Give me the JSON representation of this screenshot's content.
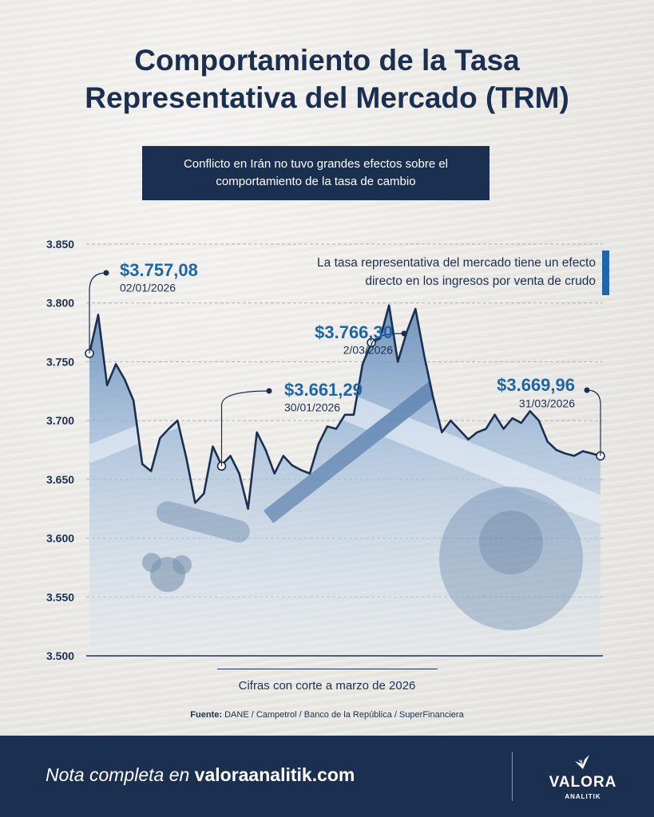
{
  "header": {
    "title_line1": "Comportamiento de la Tasa",
    "title_line2": "Representativa del Mercado (TRM)",
    "subtitle": "Conflicto en Irán no tuvo grandes efectos sobre el comportamiento de la tasa de cambio"
  },
  "note": "La tasa representativa del mercado tiene un efecto directo en los ingresos por venta de crudo",
  "caption": "Cifras con corte a marzo de 2026",
  "source": {
    "label": "Fuente:",
    "text": "DANE / Campetrol / Banco de la República / SuperFinanciera"
  },
  "footer": {
    "lead": "Nota completa en",
    "url": "valoraanalitik.com",
    "logo_name": "VALORA",
    "logo_sub": "ANALITIK"
  },
  "colors": {
    "navy": "#1b3050",
    "accent_blue": "#1e66a8",
    "fill_light": "#c6d7ea",
    "fill_mid": "#6f95c0"
  },
  "chart_data": {
    "type": "area",
    "ylim": [
      3500,
      3850
    ],
    "yticks": [
      "3.850",
      "3.800",
      "3.750",
      "3.700",
      "3.650",
      "3.600",
      "3.550",
      "3.500"
    ],
    "ytick_values": [
      3850,
      3800,
      3750,
      3700,
      3650,
      3600,
      3550,
      3500
    ],
    "x_index_range": [
      0,
      58
    ],
    "values": [
      3757,
      3790,
      3730,
      3748,
      3735,
      3717,
      3663,
      3657,
      3685,
      3693,
      3700,
      3668,
      3630,
      3638,
      3678,
      3662,
      3670,
      3655,
      3625,
      3690,
      3675,
      3655,
      3670,
      3662,
      3658,
      3655,
      3680,
      3695,
      3693,
      3705,
      3705,
      3748,
      3766,
      3770,
      3798,
      3750,
      3775,
      3795,
      3755,
      3720,
      3690,
      3700,
      3692,
      3684,
      3690,
      3693,
      3705,
      3693,
      3702,
      3698,
      3708,
      3700,
      3682,
      3675,
      3672,
      3670,
      3674,
      3672,
      3670
    ],
    "annotations": [
      {
        "value": "$3.757,08",
        "date": "02/01/2026",
        "index": 0,
        "y": 3757.08
      },
      {
        "value": "$3.661,29",
        "date": "30/01/2026",
        "index": 15,
        "y": 3661.29
      },
      {
        "value": "$3.766,30",
        "date": "2/03/2026",
        "index": 32,
        "y": 3766.3
      },
      {
        "value": "$3.669,96",
        "date": "31/03/2026",
        "index": 58,
        "y": 3669.96
      }
    ]
  }
}
